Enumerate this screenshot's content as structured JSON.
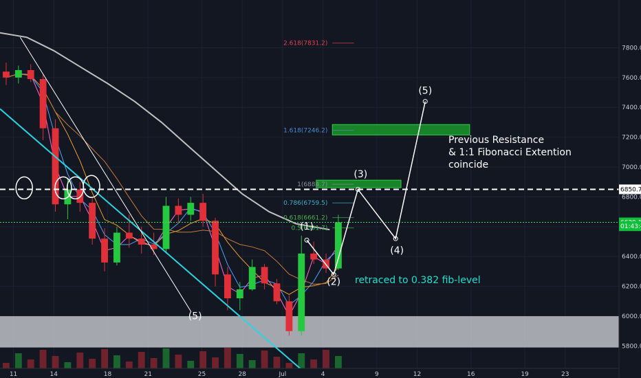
{
  "chart_data": {
    "type": "candlestick",
    "instrument": "BTCUSD",
    "y_axis": {
      "ylim": [
        5650,
        8120
      ],
      "ticks": [
        5800,
        6000,
        6200,
        6400,
        6600,
        6800,
        7000,
        7200,
        7400,
        7600,
        7800
      ],
      "tick_labels": [
        "5800.0",
        "6000.0",
        "6200.0",
        "6400.0",
        "6600.0",
        "6800.0",
        "7000.0",
        "7200.0",
        "7400.0",
        "7600.0",
        "7800.0"
      ]
    },
    "x_axis": {
      "xlim": [
        0,
        46
      ],
      "ticks": [
        1,
        4,
        8,
        11,
        15,
        18,
        21,
        24,
        28,
        31,
        35,
        39,
        42
      ],
      "tick_labels": [
        "11",
        "14",
        "18",
        "21",
        "25",
        "28",
        "Jul",
        "4",
        "9",
        "12",
        "16",
        "19",
        "23"
      ]
    },
    "price_labels": [
      {
        "value": 6850.7,
        "label": "6850.7",
        "color": "#ffffff",
        "text_color": "#000000"
      },
      {
        "value": 6629.1,
        "label": "6629.1",
        "color": "#0fbf3a",
        "text_color": "#ffffff"
      },
      {
        "value": 6603,
        "label": "01:43:47",
        "color": "#0fbf3a",
        "text_color": "#ffffff"
      }
    ],
    "fib_levels": [
      {
        "label": "2.618(7831.2)",
        "value": 7831.2,
        "color": "#e2404f"
      },
      {
        "label": "1.618(7246.2)",
        "value": 7246.2,
        "color": "#4b8bd0"
      },
      {
        "label": "1(6884.7)",
        "value": 6884.7,
        "color": "#8a8f99"
      },
      {
        "label": "0.786(6759.5)",
        "value": 6759.5,
        "color": "#3fb0c9"
      },
      {
        "label": "0.618(6661.2)",
        "value": 6661.2,
        "color": "#4caf50"
      },
      {
        "label": "0.5(6591.7)",
        "value": 6591.7,
        "color": "#3fbf4f"
      }
    ],
    "annotations": [
      {
        "text": "Previous Resistance",
        "color": "#ffffff"
      },
      {
        "text": "& 1:1 Fibonacci Extention",
        "color": "#ffffff"
      },
      {
        "text": "coincide",
        "color": "#ffffff"
      },
      {
        "text": "retraced to 0.382 fib-level",
        "color": "#1fe0d0"
      }
    ],
    "wave_labels": [
      {
        "text": "(5)",
        "x": 14.5,
        "y": 5980
      },
      {
        "text": "(1)",
        "x": 22.8,
        "y": 6580
      },
      {
        "text": "(2)",
        "x": 24.8,
        "y": 6210
      },
      {
        "text": "(3)",
        "x": 26.8,
        "y": 6930
      },
      {
        "text": "(4)",
        "x": 29.5,
        "y": 6420
      },
      {
        "text": "(5)",
        "x": 31.6,
        "y": 7490
      }
    ],
    "wave_path": [
      {
        "x": 22.8,
        "y": 6510
      },
      {
        "x": 24.8,
        "y": 6280
      },
      {
        "x": 26.6,
        "y": 6850
      },
      {
        "x": 29.4,
        "y": 6520
      },
      {
        "x": 31.6,
        "y": 7440
      }
    ],
    "zones": [
      {
        "x0": 0,
        "x1": 46,
        "y0": 5790,
        "y1": 6000,
        "color": "#d6d8dc",
        "opacity": 0.75
      },
      {
        "x0": 24.7,
        "x1": 34.9,
        "y0": 7215,
        "y1": 7285,
        "color": "#1b8f2a",
        "opacity": 0.9
      },
      {
        "x0": 23.5,
        "x1": 29.8,
        "y0": 6862,
        "y1": 6912,
        "color": "#1b8f2a",
        "opacity": 0.9
      }
    ],
    "resistance_level": 6850.7,
    "current_price": 6629.1,
    "candles": [
      {
        "o": 7640,
        "h": 7700,
        "l": 7550,
        "c": 7600
      },
      {
        "o": 7600,
        "h": 7680,
        "l": 7560,
        "c": 7650
      },
      {
        "o": 7650,
        "h": 7690,
        "l": 7570,
        "c": 7590
      },
      {
        "o": 7590,
        "h": 7620,
        "l": 7180,
        "c": 7260
      },
      {
        "o": 7260,
        "h": 7320,
        "l": 6700,
        "c": 6750
      },
      {
        "o": 6750,
        "h": 6920,
        "l": 6650,
        "c": 6850
      },
      {
        "o": 6850,
        "h": 6900,
        "l": 6700,
        "c": 6760
      },
      {
        "o": 6760,
        "h": 6800,
        "l": 6480,
        "c": 6520
      },
      {
        "o": 6520,
        "h": 6590,
        "l": 6300,
        "c": 6360
      },
      {
        "o": 6360,
        "h": 6600,
        "l": 6340,
        "c": 6560
      },
      {
        "o": 6560,
        "h": 6680,
        "l": 6460,
        "c": 6520
      },
      {
        "o": 6520,
        "h": 6600,
        "l": 6420,
        "c": 6480
      },
      {
        "o": 6480,
        "h": 6560,
        "l": 6410,
        "c": 6450
      },
      {
        "o": 6450,
        "h": 6800,
        "l": 6420,
        "c": 6740
      },
      {
        "o": 6740,
        "h": 6790,
        "l": 6620,
        "c": 6680
      },
      {
        "o": 6680,
        "h": 6800,
        "l": 6640,
        "c": 6760
      },
      {
        "o": 6760,
        "h": 6820,
        "l": 6600,
        "c": 6640
      },
      {
        "o": 6640,
        "h": 6660,
        "l": 6200,
        "c": 6280
      },
      {
        "o": 6280,
        "h": 6330,
        "l": 6040,
        "c": 6120
      },
      {
        "o": 6120,
        "h": 6230,
        "l": 6040,
        "c": 6180
      },
      {
        "o": 6180,
        "h": 6380,
        "l": 6170,
        "c": 6330
      },
      {
        "o": 6330,
        "h": 6350,
        "l": 6180,
        "c": 6220
      },
      {
        "o": 6220,
        "h": 6250,
        "l": 6080,
        "c": 6100
      },
      {
        "o": 6100,
        "h": 6140,
        "l": 5870,
        "c": 5900
      },
      {
        "o": 5900,
        "h": 6540,
        "l": 5870,
        "c": 6420
      },
      {
        "o": 6420,
        "h": 6500,
        "l": 6350,
        "c": 6380
      },
      {
        "o": 6380,
        "h": 6420,
        "l": 6290,
        "c": 6320
      },
      {
        "o": 6320,
        "h": 6680,
        "l": 6310,
        "c": 6629
      }
    ]
  }
}
